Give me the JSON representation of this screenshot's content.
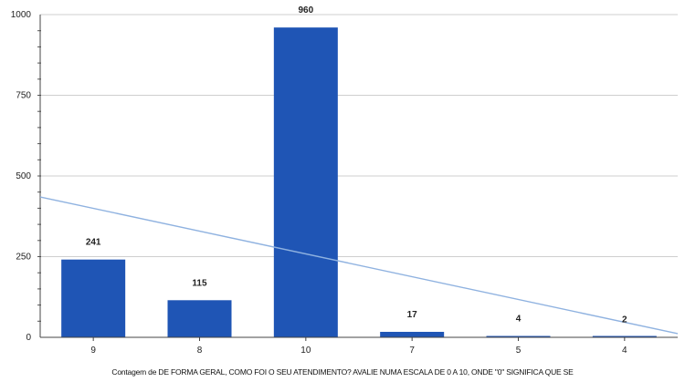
{
  "chart_data": {
    "type": "bar",
    "categories": [
      "9",
      "8",
      "10",
      "7",
      "5",
      "4"
    ],
    "values": [
      241,
      115,
      960,
      17,
      4,
      2
    ],
    "data_labels": [
      "241",
      "115",
      "960",
      "17",
      "4",
      "2"
    ],
    "ylim": [
      0,
      1000
    ],
    "yticks": [
      0,
      250,
      500,
      750,
      1000
    ],
    "grid": true,
    "bar_color": "#1f55b5",
    "trendline": {
      "type": "linear",
      "color": "#8fb2e0"
    },
    "xlabel": "Contagem de DE FORMA GERAL, COMO FOI O SEU ATENDIMENTO? AVALIE NUMA ESCALA DE 0 A 10, ONDE \"0\" SIGNIFICA QUE SE"
  }
}
